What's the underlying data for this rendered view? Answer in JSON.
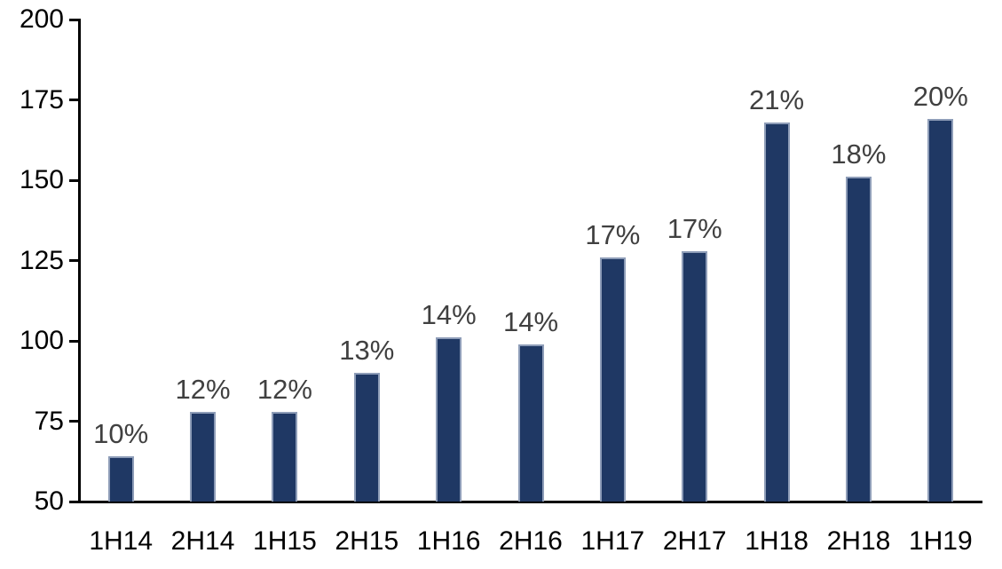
{
  "chart_data": {
    "type": "bar",
    "title": "",
    "xlabel": "",
    "ylabel": "",
    "categories": [
      "1H14",
      "2H14",
      "1H15",
      "2H15",
      "1H16",
      "2H16",
      "1H17",
      "2H17",
      "1H18",
      "2H18",
      "1H19"
    ],
    "values": [
      64,
      78,
      78,
      90,
      101,
      99,
      126,
      128,
      168,
      151,
      169
    ],
    "data_labels": [
      "10%",
      "12%",
      "12%",
      "13%",
      "14%",
      "14%",
      "17%",
      "17%",
      "21%",
      "18%",
      "20%"
    ],
    "yticks": [
      50,
      75,
      100,
      125,
      150,
      175,
      200
    ],
    "ylim": [
      50,
      200
    ],
    "grid": false,
    "legend": false,
    "colors": {
      "bar_fill": "#1F3864",
      "bar_border": "#8E9DB8",
      "data_label": "#404040",
      "axis": "#000000",
      "background": "#FFFFFF"
    }
  }
}
